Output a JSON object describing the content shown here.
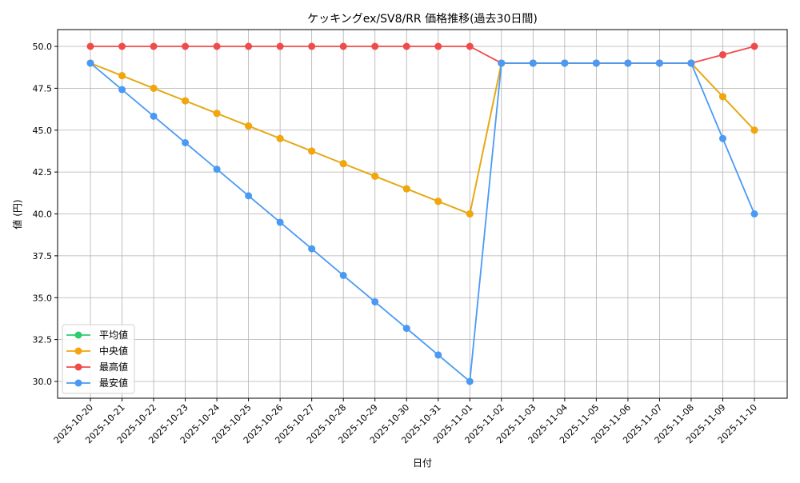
{
  "chart_data": {
    "type": "line",
    "title": "ケッキングex/SV8/RR 価格推移(過去30日間)",
    "xlabel": "日付",
    "ylabel": "値 (円)",
    "ylim": [
      29.0,
      51.0
    ],
    "yticks": [
      30.0,
      32.5,
      35.0,
      37.5,
      40.0,
      42.5,
      45.0,
      47.5,
      50.0
    ],
    "ytick_labels": [
      "30.0",
      "32.5",
      "35.0",
      "37.5",
      "40.0",
      "42.5",
      "45.0",
      "47.5",
      "50.0"
    ],
    "grid": true,
    "legend_position": "lower left",
    "categories": [
      "2025-10-20",
      "2025-10-21",
      "2025-10-22",
      "2025-10-23",
      "2025-10-24",
      "2025-10-25",
      "2025-10-26",
      "2025-10-27",
      "2025-10-28",
      "2025-10-29",
      "2025-10-30",
      "2025-10-31",
      "2025-11-01",
      "2025-11-02",
      "2025-11-03",
      "2025-11-04",
      "2025-11-05",
      "2025-11-06",
      "2025-11-07",
      "2025-11-08",
      "2025-11-09",
      "2025-11-10"
    ],
    "series": [
      {
        "name": "平均値",
        "color": "#2ecc71",
        "values": [
          49,
          48.25,
          47.5,
          46.75,
          46,
          45.25,
          44.5,
          43.75,
          43,
          42.25,
          41.5,
          40.75,
          40,
          49,
          49,
          49,
          49,
          49,
          49,
          49,
          47,
          45
        ]
      },
      {
        "name": "中央値",
        "color": "#f5a50a",
        "values": [
          49,
          48.25,
          47.5,
          46.75,
          46,
          45.25,
          44.5,
          43.75,
          43,
          42.25,
          41.5,
          40.75,
          40,
          49,
          49,
          49,
          49,
          49,
          49,
          49,
          47,
          45
        ]
      },
      {
        "name": "最高値",
        "color": "#f04b4b",
        "values": [
          50,
          50,
          50,
          50,
          50,
          50,
          50,
          50,
          50,
          50,
          50,
          50,
          50,
          49,
          49,
          49,
          49,
          49,
          49,
          49,
          49.5,
          50
        ]
      },
      {
        "name": "最安値",
        "color": "#4a9af5",
        "values": [
          49,
          47.42,
          45.83,
          44.25,
          42.67,
          41.08,
          39.5,
          37.92,
          36.33,
          34.75,
          33.17,
          31.58,
          30,
          49,
          49,
          49,
          49,
          49,
          49,
          49,
          44.5,
          40
        ]
      }
    ]
  }
}
